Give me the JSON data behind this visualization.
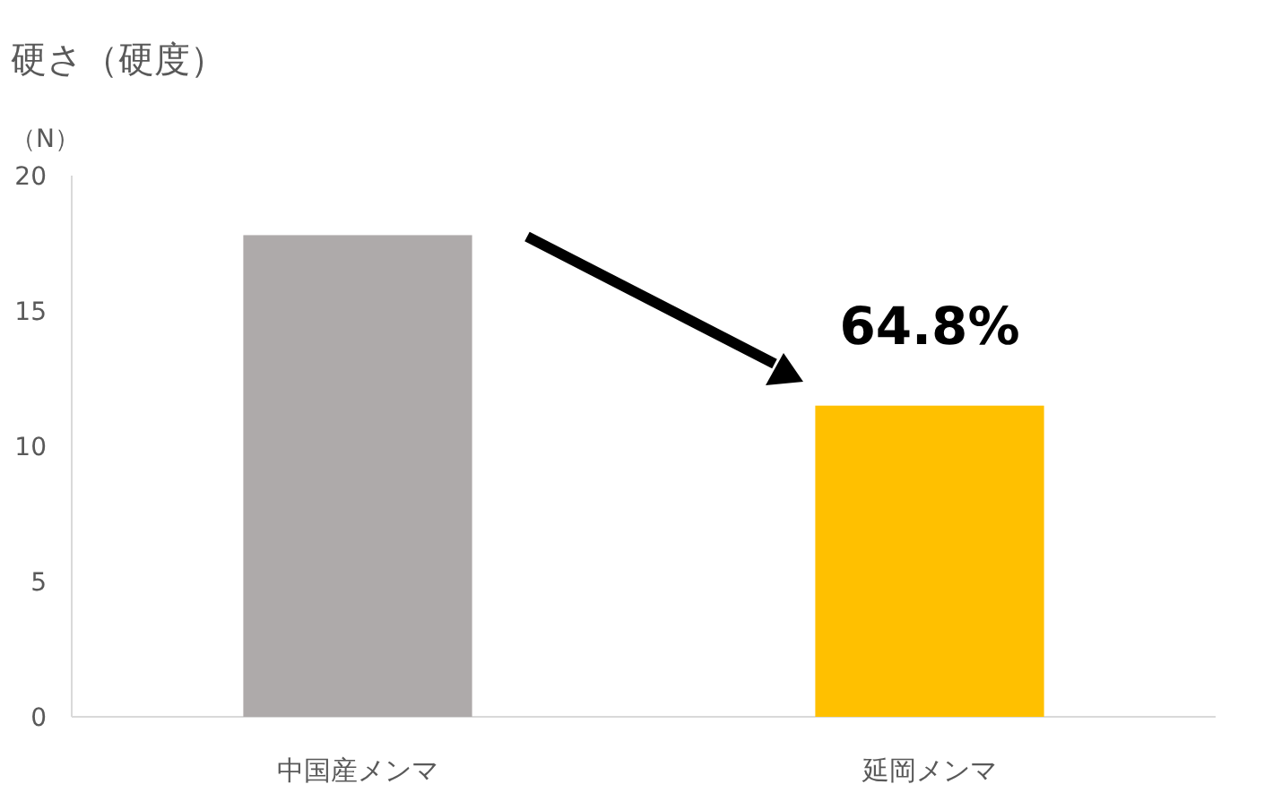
{
  "chart_data": {
    "type": "bar",
    "title": "硬さ（硬度）",
    "ylabel": "（N）",
    "categories": [
      "中国産メンマ",
      "延岡メンマ"
    ],
    "values": [
      17.8,
      11.5
    ],
    "colors": [
      "#aeaaaa",
      "#ffc000"
    ],
    "ylim": [
      0,
      20
    ],
    "yticks": [
      0,
      5,
      10,
      15,
      20
    ],
    "grid": false,
    "annotations": [
      "64.8%"
    ]
  }
}
